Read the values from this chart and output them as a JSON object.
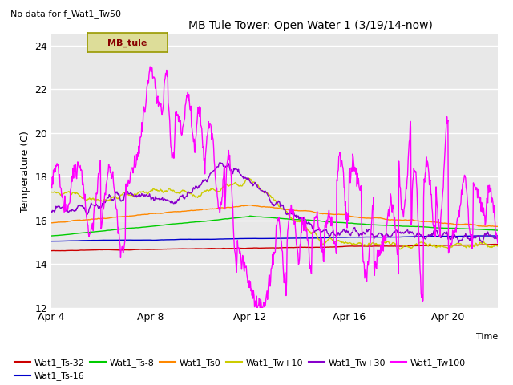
{
  "title": "MB Tule Tower: Open Water 1 (3/19/14-now)",
  "no_data_text": "No data for f_Wat1_Tw50",
  "ylabel": "Temperature (C)",
  "xlabel": "Time",
  "ylim": [
    12,
    24.5
  ],
  "yticks": [
    12,
    14,
    16,
    18,
    20,
    22,
    24
  ],
  "xlim": [
    0,
    18
  ],
  "xtick_labels": [
    "Apr 4",
    "Apr 8",
    "Apr 12",
    "Apr 16",
    "Apr 20"
  ],
  "xtick_pos": [
    0,
    4,
    8,
    12,
    16
  ],
  "fig_bg": "#ffffff",
  "plot_bg": "#e8e8e8",
  "grid_color": "#ffffff",
  "series_colors": {
    "Wat1_Ts-32": "#cc0000",
    "Wat1_Ts-16": "#0000cc",
    "Wat1_Ts-8": "#00cc00",
    "Wat1_Ts0": "#ff8800",
    "Wat1_Tw+10": "#cccc00",
    "Wat1_Tw+30": "#8800cc",
    "Wat1_Tw100": "#ff00ff"
  },
  "legend_label": "MB_tule",
  "legend_box_color": "#dddd99",
  "legend_box_edge": "#999900",
  "legend_text_color": "#880000"
}
